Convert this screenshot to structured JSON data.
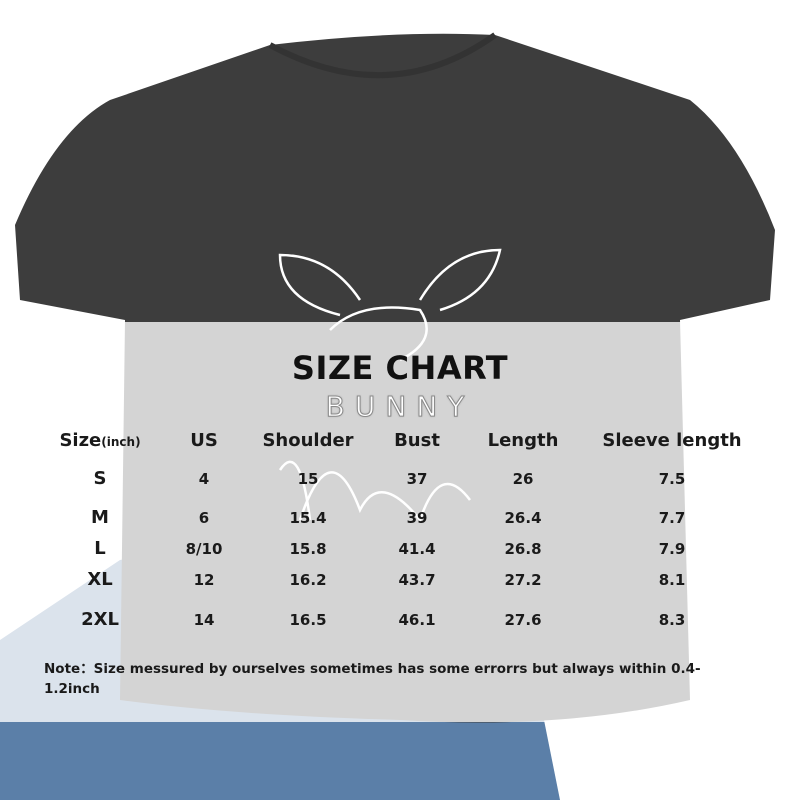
{
  "graphic": {
    "shirt_color": "#3d3d3d",
    "jeans_color": "#5b7fa8",
    "print_text": "BUNNY"
  },
  "size_chart": {
    "title": "SIZE CHART",
    "headers": {
      "size": "Size",
      "size_unit": "(inch)",
      "us": "US",
      "shoulder": "Shoulder",
      "bust": "Bust",
      "length": "Length",
      "sleeve": "Sleeve length"
    },
    "rows": [
      {
        "size": "S",
        "us": "4",
        "shoulder": "15",
        "bust": "37",
        "length": "26",
        "sleeve": "7.5"
      },
      {
        "size": "M",
        "us": "6",
        "shoulder": "15.4",
        "bust": "39",
        "length": "26.4",
        "sleeve": "7.7"
      },
      {
        "size": "L",
        "us": "8/10",
        "shoulder": "15.8",
        "bust": "41.4",
        "length": "26.8",
        "sleeve": "7.9"
      },
      {
        "size": "XL",
        "us": "12",
        "shoulder": "16.2",
        "bust": "43.7",
        "length": "27.2",
        "sleeve": "8.1"
      },
      {
        "size": "2XL",
        "us": "14",
        "shoulder": "16.5",
        "bust": "46.1",
        "length": "27.6",
        "sleeve": "8.3"
      }
    ],
    "note": "Note：Size messured by ourselves sometimes has some errorrs but always within 0.4-1.2inch"
  }
}
